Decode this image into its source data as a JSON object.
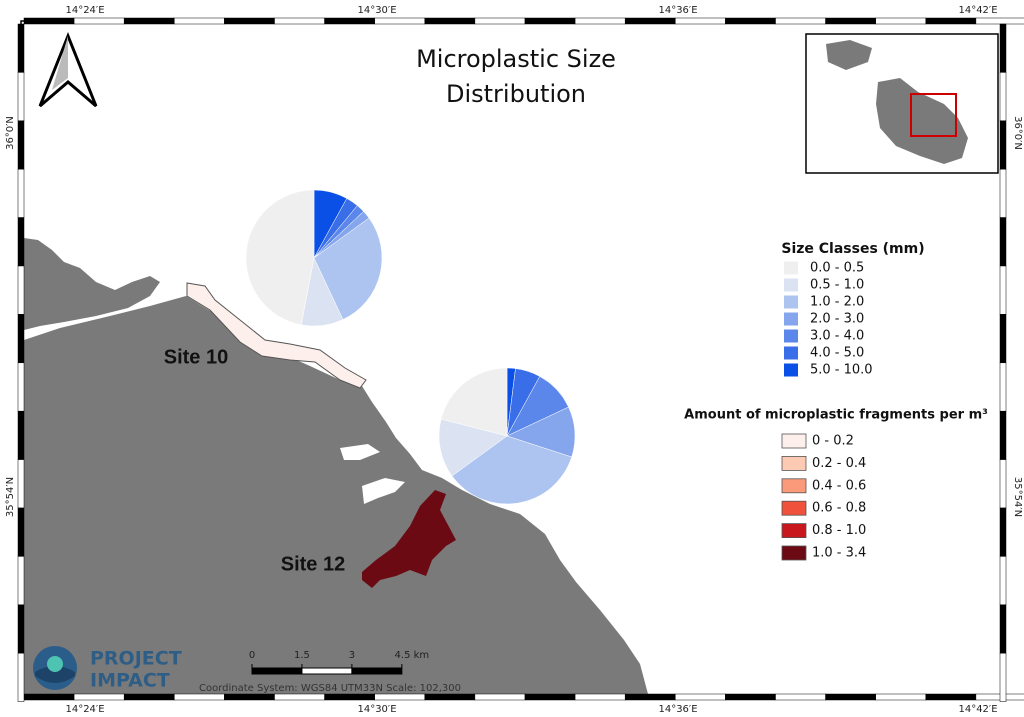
{
  "title": [
    "Microplastic Size",
    "Distribution"
  ],
  "coordinates": {
    "top": [
      "14°24′E",
      "14°30′E",
      "14°36′E",
      "14°42′E"
    ],
    "bottom": [
      "14°24′E",
      "14°30′E",
      "14°36′E",
      "14°42′E"
    ],
    "left": [
      "36°0′N",
      "35°54′N"
    ],
    "right": [
      "36°0′N",
      "35°54′N"
    ]
  },
  "sites": [
    {
      "label": "Site 10",
      "color": "#fdf0ec",
      "size_shares": [
        47,
        10,
        28,
        2,
        2,
        3,
        8
      ]
    },
    {
      "label": "Site 12",
      "color": "#6b0a12",
      "size_shares": [
        21,
        14,
        35,
        12,
        10,
        6,
        2
      ]
    }
  ],
  "size_legend": {
    "title": "Size Classes (mm)",
    "classes": [
      {
        "label": "0.0 - 0.5",
        "color": "#efefef"
      },
      {
        "label": "0.5 - 1.0",
        "color": "#dbe2f2"
      },
      {
        "label": "1.0 - 2.0",
        "color": "#adc3f0"
      },
      {
        "label": "2.0 - 3.0",
        "color": "#85a6ec"
      },
      {
        "label": "3.0 - 4.0",
        "color": "#5b87ea"
      },
      {
        "label": "4.0 - 5.0",
        "color": "#3a6ee8"
      },
      {
        "label": "5.0 - 10.0",
        "color": "#0a4fe6"
      }
    ]
  },
  "fragment_legend": {
    "title": "Amount of microplastic fragments per m³",
    "classes": [
      {
        "label": "0 - 0.2",
        "color": "#fdf0ec"
      },
      {
        "label": "0.2 - 0.4",
        "color": "#fcc9b3"
      },
      {
        "label": "0.4 - 0.6",
        "color": "#fb9a7b"
      },
      {
        "label": "0.6 - 0.8",
        "color": "#f0513c"
      },
      {
        "label": "0.8 - 1.0",
        "color": "#c8171d"
      },
      {
        "label": "1.0 - 3.4",
        "color": "#6b0a12"
      }
    ]
  },
  "scale_bar": {
    "ticks": [
      0,
      1.5,
      3,
      {
        "value": 4.5,
        "label": "4.5 km"
      }
    ]
  },
  "coordinate_note": "Coordinate System: WGS84 UTM33N  Scale: 102,300",
  "logo": [
    "PROJECT",
    "IMPACT"
  ]
}
